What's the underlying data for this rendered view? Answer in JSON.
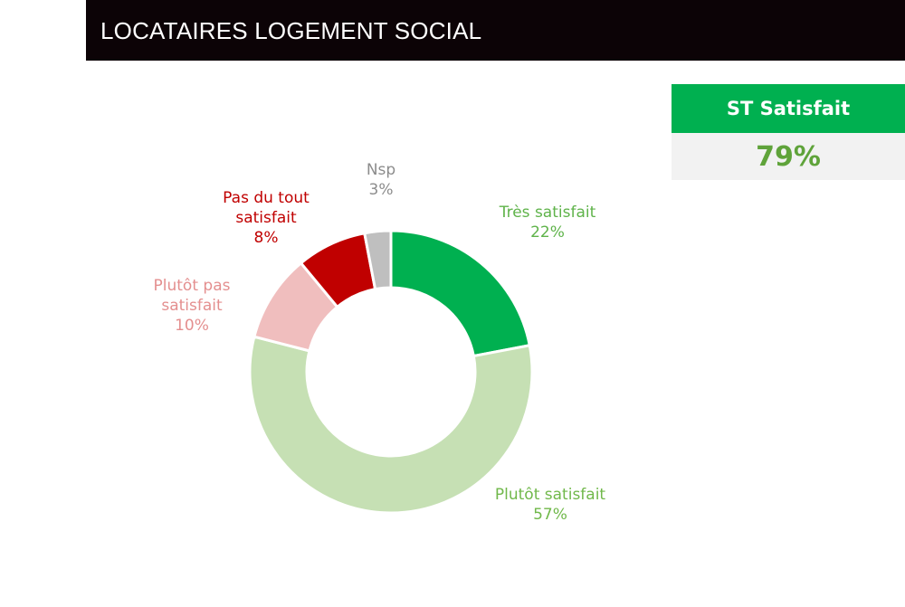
{
  "header": {
    "title": "LOCATAIRES LOGEMENT SOCIAL"
  },
  "kpi": {
    "label": "ST Satisfait",
    "value": "79%",
    "label_bg": "#00b050",
    "value_color": "#5fa33a"
  },
  "chart_data": {
    "type": "pie",
    "donut": true,
    "slices": [
      {
        "label": [
          "Très satisfait"
        ],
        "pct_text": "22%",
        "value": 22,
        "color": "#00b050",
        "text_color": "#5fb34a"
      },
      {
        "label": [
          "Plutôt satisfait"
        ],
        "pct_text": "57%",
        "value": 57,
        "color": "#c6e0b4",
        "text_color": "#70b84a"
      },
      {
        "label": [
          "Plutôt pas",
          "satisfait"
        ],
        "pct_text": "10%",
        "value": 10,
        "color": "#f0bebe",
        "text_color": "#e48f8f"
      },
      {
        "label": [
          "Pas du tout",
          "satisfait"
        ],
        "pct_text": "8%",
        "value": 8,
        "color": "#c00000",
        "text_color": "#c00000"
      },
      {
        "label": [
          "Nsp"
        ],
        "pct_text": "3%",
        "value": 3,
        "color": "#bfbfbf",
        "text_color": "#8c8c8c"
      }
    ]
  }
}
